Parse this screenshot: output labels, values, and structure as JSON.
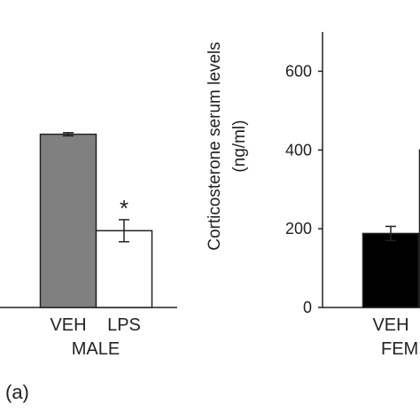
{
  "panel_label": "(a)",
  "chart_data": [
    {
      "type": "bar",
      "group_label": "MALE",
      "categories": [
        "VEH",
        "LPS"
      ],
      "values": [
        440,
        195
      ],
      "errors": [
        4,
        28
      ],
      "bar_colors": [
        "#808080",
        "#ffffff"
      ],
      "significance": [
        "",
        "*"
      ],
      "ylim": [
        0,
        700
      ]
    },
    {
      "type": "bar",
      "ylabel": "Corticosterone serum levels",
      "ylabel_unit": "(ng/ml)",
      "group_label": "FEM",
      "categories": [
        "VEH",
        ""
      ],
      "values": [
        188,
        400
      ],
      "errors": [
        18,
        0
      ],
      "bar_colors": [
        "#000000",
        "#000000"
      ],
      "yticks": [
        0,
        200,
        400,
        600
      ],
      "ylim": [
        0,
        700
      ]
    }
  ]
}
